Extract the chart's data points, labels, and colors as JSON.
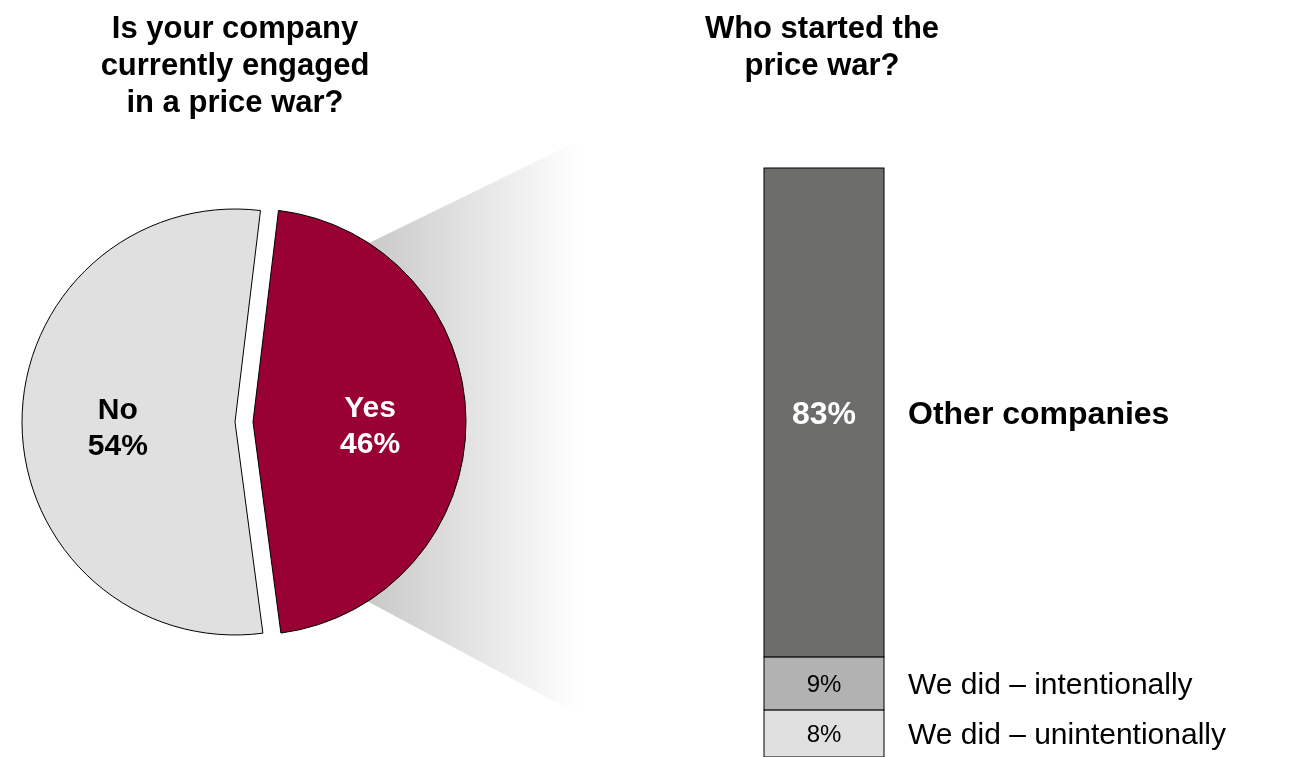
{
  "chart_data": [
    {
      "type": "pie",
      "title": "Is your company currently engaged in a price war?",
      "categories": [
        "No",
        "Yes"
      ],
      "values": [
        54,
        46
      ],
      "colors": [
        "#e0e0e0",
        "#990033"
      ],
      "value_labels": [
        "54%",
        "46%"
      ]
    },
    {
      "type": "bar",
      "title": "Who started the price war?",
      "stacked": true,
      "categories": [
        null
      ],
      "series": [
        {
          "name": "We did – unintentionally",
          "color": "#e0e0e0",
          "values": [
            8
          ],
          "value_labels": [
            "8%"
          ]
        },
        {
          "name": "We did – intentionally",
          "color": "#b2b2b2",
          "values": [
            9
          ],
          "value_labels": [
            "9%"
          ]
        },
        {
          "name": "Other companies",
          "color": "#6d6d6b",
          "values": [
            83
          ],
          "value_labels": [
            "83%"
          ]
        }
      ]
    }
  ]
}
